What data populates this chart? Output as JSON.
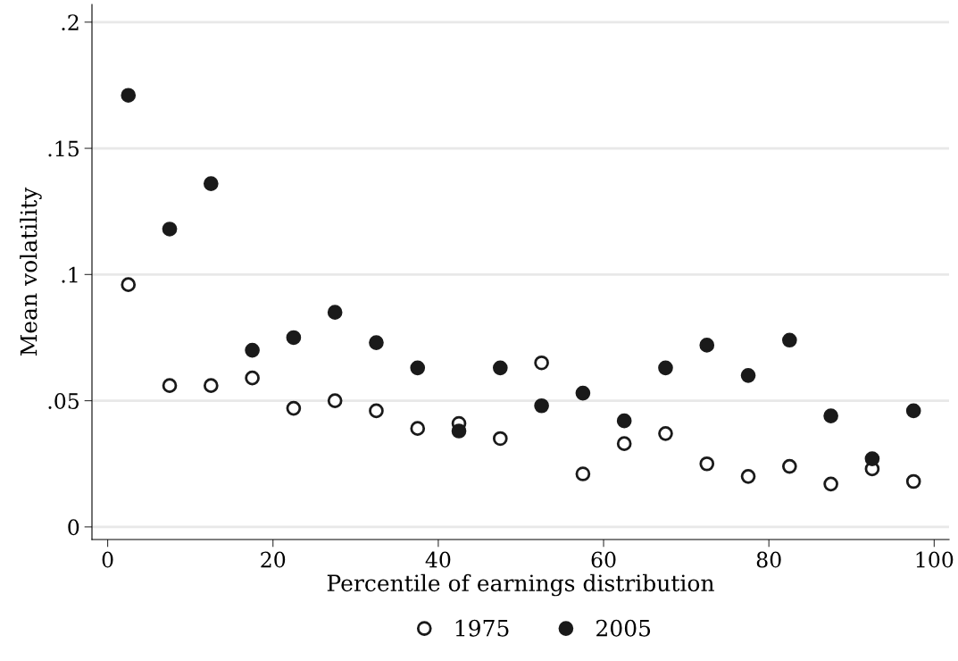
{
  "chart_data": {
    "type": "scatter",
    "xlabel": "Percentile of earnings distribution",
    "ylabel": "Mean volatility",
    "x": [
      2.5,
      7.5,
      12.5,
      17.5,
      22.5,
      27.5,
      32.5,
      37.5,
      42.5,
      47.5,
      52.5,
      57.5,
      62.5,
      67.5,
      72.5,
      77.5,
      82.5,
      87.5,
      92.5,
      97.5
    ],
    "series": [
      {
        "name": "1975",
        "color": "#ffffff",
        "marker": "circle",
        "values": [
          0.096,
          0.056,
          0.056,
          0.059,
          0.047,
          0.05,
          0.046,
          0.039,
          0.041,
          0.035,
          0.065,
          0.021,
          0.033,
          0.037,
          0.025,
          0.02,
          0.024,
          0.017,
          0.023,
          0.018
        ]
      },
      {
        "name": "2005",
        "color": "#1a1a1a",
        "marker": "circle",
        "values": [
          0.171,
          0.118,
          0.136,
          0.07,
          0.075,
          0.085,
          0.073,
          0.063,
          0.038,
          0.063,
          0.048,
          0.053,
          0.042,
          0.063,
          0.072,
          0.06,
          0.074,
          0.044,
          0.027,
          0.046
        ]
      }
    ],
    "xlim": [
      -1.9,
      101.8
    ],
    "xticks": [
      0,
      20,
      40,
      60,
      80,
      100
    ],
    "ylim": [
      -0.005,
      0.207
    ],
    "yticks": [
      {
        "value": 0,
        "label": "0"
      },
      {
        "value": 0.05,
        "label": ".05"
      },
      {
        "value": 0.1,
        "label": ".1"
      },
      {
        "value": 0.15,
        "label": ".15"
      },
      {
        "value": 0.2,
        "label": ".2"
      }
    ],
    "grid": "y",
    "legend": "bottom"
  }
}
